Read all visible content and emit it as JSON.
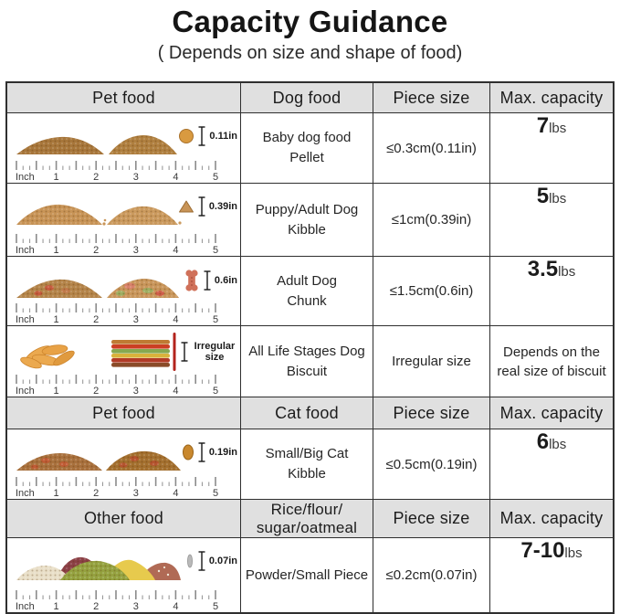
{
  "title": "Capacity Guidance",
  "subtitle": "( Depends on size and shape of food)",
  "ruler": {
    "unit": "Inch",
    "marks": [
      "1",
      "2",
      "3",
      "4",
      "5"
    ]
  },
  "sections": [
    {
      "header": {
        "col1": "Pet food",
        "col2": "Dog food",
        "col3": "Piece size",
        "col4": "Max. capacity"
      },
      "rows": [
        {
          "food_line1": "Baby dog food",
          "food_line2": "Pellet",
          "piece_size": "≤0.3cm(0.11in)",
          "capacity_big": "7",
          "capacity_small": "lbs",
          "size_label": "0.11in"
        },
        {
          "food_line1": "Puppy/Adult Dog",
          "food_line2": "Kibble",
          "piece_size": "≤1cm(0.39in)",
          "capacity_big": "5",
          "capacity_small": "lbs",
          "size_label": "0.39in"
        },
        {
          "food_line1": "Adult Dog",
          "food_line2": "Chunk",
          "piece_size": "≤1.5cm(0.6in)",
          "capacity_big": "3.5",
          "capacity_small": "lbs",
          "size_label": "0.6in"
        },
        {
          "food_line1": "All Life Stages Dog",
          "food_line2": "Biscuit",
          "piece_size": "Irregular size",
          "capacity_text": "Depends on the real size of biscuit",
          "size_label": "Irregular size"
        }
      ]
    },
    {
      "header": {
        "col1": "Pet food",
        "col2": "Cat food",
        "col3": "Piece size",
        "col4": "Max. capacity"
      },
      "rows": [
        {
          "food_line1": "Small/Big Cat",
          "food_line2": "Kibble",
          "piece_size": "≤0.5cm(0.19in)",
          "capacity_big": "6",
          "capacity_small": "lbs",
          "size_label": "0.19in"
        }
      ]
    },
    {
      "header": {
        "col1": "Other food",
        "col2_line1": "Rice/flour/",
        "col2_line2": "sugar/oatmeal",
        "col3": "Piece size",
        "col4": "Max. capacity"
      },
      "rows": [
        {
          "food_line1": "Powder/Small Piece",
          "piece_size": "≤0.2cm(0.07in)",
          "capacity_big": "7-10",
          "capacity_small": "lbs",
          "size_label": "0.07in"
        }
      ]
    }
  ]
}
